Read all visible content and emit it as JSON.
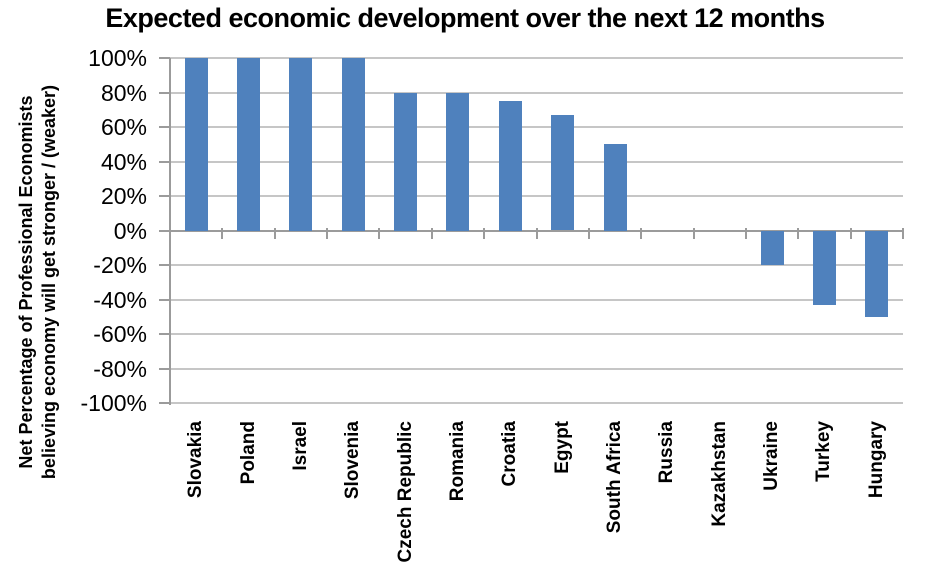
{
  "chart_data": {
    "type": "bar",
    "title": "Expected economic development over the next 12 months",
    "ylabel_line1": "Net Percentage of Professional Economists",
    "ylabel_line2": "believing economy will get stronger / (weaker)",
    "categories": [
      "Slovakia",
      "Poland",
      "Israel",
      "Slovenia",
      "Czech Republic",
      "Romania",
      "Croatia",
      "Egypt",
      "South Africa",
      "Russia",
      "Kazakhstan",
      "Ukraine",
      "Turkey",
      "Hungary"
    ],
    "values": [
      100,
      100,
      100,
      100,
      80,
      80,
      75,
      66.7,
      50,
      0,
      0,
      -20,
      -43,
      -50
    ],
    "ylim": [
      -100,
      100
    ],
    "ytick_step": 20,
    "ytick_suffix": "%",
    "grid": "on",
    "legend_position": "none",
    "bar_color": "#4f81bd",
    "gridline_color": "#c6c6c6",
    "axis_color": "#9b9b9b",
    "title_color": "#000000",
    "background_color": "#ffffff"
  }
}
